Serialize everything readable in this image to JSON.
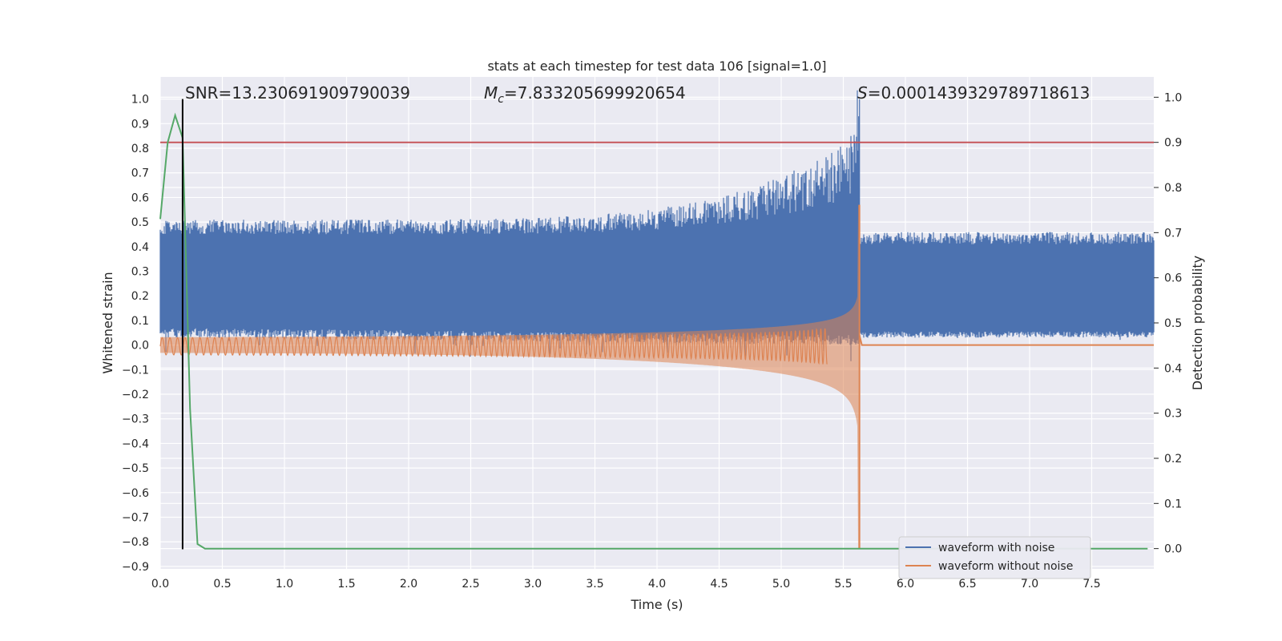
{
  "chart_data": {
    "type": "line",
    "title": "stats at each timestep for test data 106 [signal=1.0]",
    "xlabel": "Time (s)",
    "ylabel": "Whitened strain",
    "ylabel_right": "Detection probability",
    "xlim": [
      0.0,
      8.0
    ],
    "ylim": [
      -0.91,
      1.09
    ],
    "ylim_right": [
      -0.045,
      1.045
    ],
    "x_ticks": [
      "0.0",
      "0.5",
      "1.0",
      "1.5",
      "2.0",
      "2.5",
      "3.0",
      "3.5",
      "4.0",
      "4.5",
      "5.0",
      "5.5",
      "6.0",
      "6.5",
      "7.0",
      "7.5"
    ],
    "x_tick_values": [
      0.0,
      0.5,
      1.0,
      1.5,
      2.0,
      2.5,
      3.0,
      3.5,
      4.0,
      4.5,
      5.0,
      5.5,
      6.0,
      6.5,
      7.0,
      7.5
    ],
    "y_ticks": [
      "1.0",
      "0.9",
      "0.8",
      "0.7",
      "0.6",
      "0.5",
      "0.4",
      "0.3",
      "0.2",
      "0.1",
      "0.0",
      "−0.1",
      "−0.2",
      "−0.3",
      "−0.4",
      "−0.5",
      "−0.6",
      "−0.7",
      "−0.8",
      "−0.9"
    ],
    "y_tick_values": [
      1.0,
      0.9,
      0.8,
      0.7,
      0.6,
      0.5,
      0.4,
      0.3,
      0.2,
      0.1,
      0.0,
      -0.1,
      -0.2,
      -0.3,
      -0.4,
      -0.5,
      -0.6,
      -0.7,
      -0.8,
      -0.9
    ],
    "y_right_ticks": [
      "1.0",
      "0.9",
      "0.8",
      "0.7",
      "0.6",
      "0.5",
      "0.4",
      "0.3",
      "0.2",
      "0.1",
      "0.0"
    ],
    "y_right_tick_values": [
      1.0,
      0.9,
      0.8,
      0.7,
      0.6,
      0.5,
      0.4,
      0.3,
      0.2,
      0.1,
      0.0
    ],
    "annotations": {
      "snr": "SNR=13.230691909790039",
      "mc_symbol": "M",
      "mc_sub": "c",
      "mc_value": "=7.833205699920654",
      "s_symbol": "S",
      "s_value": "=0.0001439329789718613"
    },
    "series": [
      {
        "name": "waveform with noise",
        "color": "#4c72b0",
        "description_values": {
          "baseline_band": [
            0.03,
            0.43
          ],
          "peak_time": 5.63,
          "peak_value": 1.0
        }
      },
      {
        "name": "waveform without noise",
        "color": "#dd8452",
        "description_values": {
          "merger_time": 5.63,
          "merger_max": 0.57,
          "merger_min": -0.83,
          "post_merger_value": 0.0
        }
      },
      {
        "name": "detection probability",
        "axis": "right",
        "color": "#55a868",
        "x": [
          0.0,
          0.06,
          0.12,
          0.18,
          0.24,
          0.3,
          0.36,
          0.42,
          7.95
        ],
        "y": [
          0.73,
          0.9,
          0.96,
          0.91,
          0.31,
          0.01,
          0.0,
          0.0,
          0.0
        ]
      }
    ],
    "threshold": {
      "value": 0.9,
      "axis": "right",
      "color": "#c44e52"
    },
    "vline": {
      "x": 0.18,
      "y_top": 1.0,
      "y_bottom": -0.83,
      "color": "#000000"
    },
    "legend": {
      "position": "lower-right",
      "entries": [
        "waveform with noise",
        "waveform without noise"
      ]
    },
    "grid": true,
    "background": "#eaeaf2"
  }
}
